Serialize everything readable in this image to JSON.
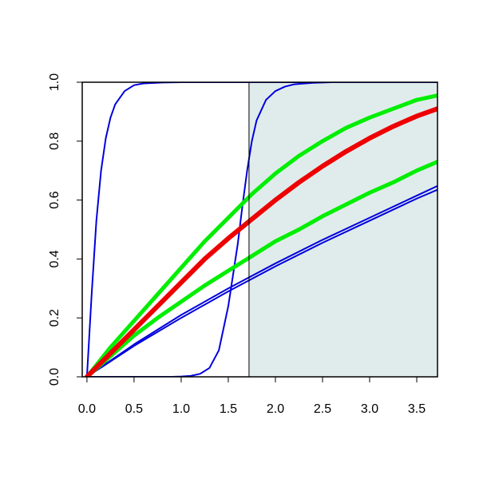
{
  "chart_data": {
    "type": "line",
    "title": "",
    "xlabel": "",
    "ylabel": "",
    "xlim": [
      -0.05,
      3.72
    ],
    "ylim": [
      0.0,
      1.0
    ],
    "x_ticks": [
      0.0,
      0.5,
      1.0,
      1.5,
      2.0,
      2.5,
      3.0,
      3.5
    ],
    "x_tick_labels": [
      "0.0",
      "0.5",
      "1.0",
      "1.5",
      "2.0",
      "2.5",
      "3.0",
      "3.5"
    ],
    "y_ticks": [
      0.0,
      0.2,
      0.4,
      0.6,
      0.8,
      1.0
    ],
    "y_tick_labels": [
      "0.0",
      "0.2",
      "0.4",
      "0.6",
      "0.8",
      "1.0"
    ],
    "grid": false,
    "legend": "none",
    "shaded_region": {
      "x_from": 1.72,
      "x_to": 3.72,
      "color": "#e0ecec"
    },
    "vertical_marker": {
      "x": 1.72,
      "y_from": 0.0,
      "y_to": 1.0,
      "color": "#000000"
    },
    "series": [
      {
        "color": "#0000dd",
        "width": 2,
        "x": [
          0,
          0.05,
          0.1,
          0.15,
          0.2,
          0.25,
          0.3,
          0.4,
          0.5,
          0.6,
          0.8,
          1.0,
          3.72
        ],
        "y": [
          0,
          0.28,
          0.53,
          0.7,
          0.81,
          0.88,
          0.925,
          0.97,
          0.99,
          0.996,
          0.999,
          1.0,
          1.0
        ]
      },
      {
        "color": "#0000dd",
        "width": 2,
        "x": [
          0,
          0.9,
          1.0,
          1.1,
          1.2,
          1.3,
          1.4,
          1.5,
          1.6,
          1.65,
          1.7,
          1.75,
          1.8,
          1.9,
          2.0,
          2.1,
          2.2,
          2.4,
          2.6,
          3.72
        ],
        "y": [
          0,
          0.0,
          0.001,
          0.003,
          0.01,
          0.03,
          0.09,
          0.24,
          0.45,
          0.58,
          0.7,
          0.8,
          0.87,
          0.94,
          0.97,
          0.985,
          0.993,
          0.998,
          1.0,
          1.0
        ]
      },
      {
        "color": "#0000dd",
        "width": 2,
        "x": [
          0,
          0.5,
          1.0,
          1.5,
          2.0,
          2.5,
          3.0,
          3.5,
          3.72
        ],
        "y": [
          0,
          0.105,
          0.2,
          0.29,
          0.375,
          0.455,
          0.53,
          0.605,
          0.635
        ]
      },
      {
        "color": "#0000dd",
        "width": 2,
        "x": [
          0,
          0.5,
          1.0,
          1.5,
          2.0,
          2.5,
          3.0,
          3.5,
          3.72
        ],
        "y": [
          0,
          0.11,
          0.21,
          0.3,
          0.385,
          0.465,
          0.54,
          0.615,
          0.648
        ]
      },
      {
        "color": "#00ee00",
        "width": 5,
        "x": [
          0,
          0.25,
          0.5,
          0.75,
          1.0,
          1.25,
          1.5,
          1.75,
          2.0,
          2.25,
          2.5,
          2.75,
          3.0,
          3.25,
          3.5,
          3.72
        ],
        "y": [
          0,
          0.07,
          0.14,
          0.2,
          0.255,
          0.31,
          0.36,
          0.41,
          0.46,
          0.5,
          0.545,
          0.585,
          0.625,
          0.66,
          0.7,
          0.73
        ]
      },
      {
        "color": "#00ee00",
        "width": 5,
        "x": [
          0,
          0.25,
          0.5,
          0.75,
          1.0,
          1.25,
          1.5,
          1.75,
          2.0,
          2.25,
          2.5,
          2.75,
          3.0,
          3.25,
          3.5,
          3.72
        ],
        "y": [
          0,
          0.1,
          0.19,
          0.28,
          0.37,
          0.46,
          0.54,
          0.62,
          0.69,
          0.75,
          0.8,
          0.845,
          0.88,
          0.91,
          0.94,
          0.955
        ]
      },
      {
        "color": "#ee0000",
        "width": 6,
        "x": [
          0,
          0.25,
          0.5,
          0.75,
          1.0,
          1.25,
          1.5,
          1.75,
          2.0,
          2.25,
          2.5,
          2.75,
          3.0,
          3.25,
          3.5,
          3.72
        ],
        "y": [
          0,
          0.08,
          0.16,
          0.24,
          0.32,
          0.4,
          0.47,
          0.535,
          0.6,
          0.66,
          0.715,
          0.765,
          0.81,
          0.85,
          0.885,
          0.91
        ]
      }
    ]
  }
}
